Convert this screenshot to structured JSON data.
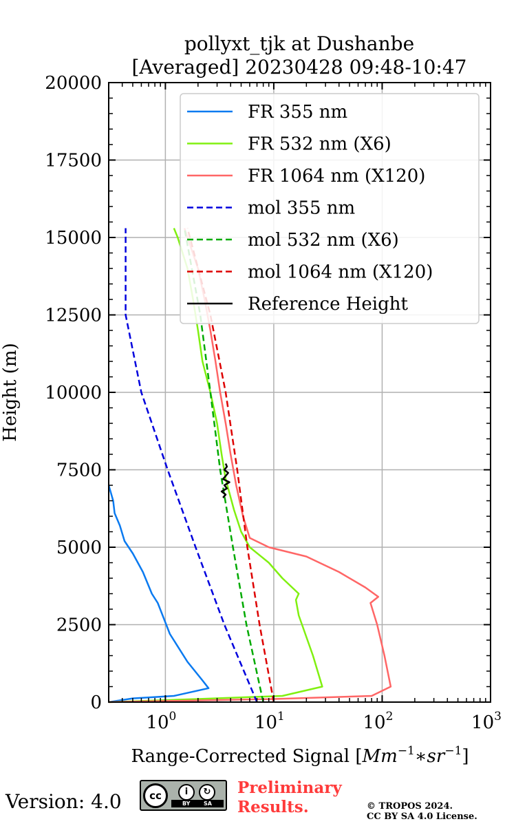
{
  "chart_data": {
    "type": "line",
    "title_lines": [
      "pollyxt_tjk at Dushanbe",
      "[Averaged] 20230428 09:48-10:47"
    ],
    "xlabel_text": "Range-Corrected Signal [",
    "xlabel_units": "Mm",
    "xlabel_exp1": "−1",
    "xlabel_star": "∗",
    "xlabel_units2": "sr",
    "xlabel_exp2": "−1",
    "xlabel_close": "]",
    "ylabel": "Height (m)",
    "x_scale": "log",
    "xlim": [
      0.3,
      1000
    ],
    "ylim": [
      0,
      20000
    ],
    "x_ticks": [
      {
        "value": 1,
        "mantissa": "10",
        "exp": "0"
      },
      {
        "value": 10,
        "mantissa": "10",
        "exp": "1"
      },
      {
        "value": 100,
        "mantissa": "10",
        "exp": "2"
      },
      {
        "value": 1000,
        "mantissa": "10",
        "exp": "3"
      }
    ],
    "y_ticks": [
      0,
      2500,
      5000,
      7500,
      10000,
      12500,
      15000,
      17500,
      20000
    ],
    "grid": true,
    "legend_position": "top-right",
    "series": [
      {
        "name": "FR 355 nm",
        "color": "#0a7af0",
        "style": "solid",
        "points": [
          [
            0.3,
            0
          ],
          [
            0.5,
            120
          ],
          [
            1.2,
            200
          ],
          [
            2.5,
            450
          ],
          [
            2.2,
            700
          ],
          [
            1.6,
            1300
          ],
          [
            1.1,
            2200
          ],
          [
            0.85,
            3200
          ],
          [
            0.75,
            3500
          ],
          [
            0.62,
            4200
          ],
          [
            0.5,
            4800
          ],
          [
            0.42,
            5200
          ],
          [
            0.38,
            5700
          ],
          [
            0.34,
            6100
          ],
          [
            0.33,
            6500
          ],
          [
            0.3,
            7000
          ]
        ]
      },
      {
        "name": "FR 532 nm (X6)",
        "color": "#80f010",
        "style": "solid",
        "points": [
          [
            0.3,
            0
          ],
          [
            2,
            100
          ],
          [
            12,
            200
          ],
          [
            28,
            500
          ],
          [
            23,
            1500
          ],
          [
            17,
            2800
          ],
          [
            16,
            3300
          ],
          [
            17,
            3500
          ],
          [
            12,
            4000
          ],
          [
            9,
            4500
          ],
          [
            6,
            5000
          ],
          [
            5,
            5500
          ],
          [
            4.3,
            6200
          ],
          [
            3.6,
            7200
          ],
          [
            3.3,
            8000
          ],
          [
            3,
            9000
          ],
          [
            2.6,
            10000
          ],
          [
            2.2,
            11000
          ],
          [
            2,
            12000
          ],
          [
            1.8,
            13000
          ],
          [
            1.6,
            14000
          ],
          [
            1.3,
            15000
          ],
          [
            1.2,
            15300
          ]
        ]
      },
      {
        "name": "FR 1064 nm (X120)",
        "color": "#ff6666",
        "style": "solid",
        "points": [
          [
            0.3,
            0
          ],
          [
            10,
            100
          ],
          [
            80,
            200
          ],
          [
            120,
            500
          ],
          [
            105,
            1500
          ],
          [
            90,
            2500
          ],
          [
            78,
            3200
          ],
          [
            92,
            3400
          ],
          [
            70,
            3700
          ],
          [
            40,
            4200
          ],
          [
            20,
            4700
          ],
          [
            9,
            5000
          ],
          [
            6,
            5300
          ],
          [
            5.2,
            6000
          ],
          [
            4.5,
            7000
          ],
          [
            4,
            8000
          ],
          [
            3.6,
            9000
          ],
          [
            3.2,
            10000
          ],
          [
            2.9,
            11000
          ],
          [
            2.6,
            12000
          ],
          [
            2.3,
            13000
          ],
          [
            2,
            14000
          ],
          [
            1.6,
            15000
          ],
          [
            1.5,
            15300
          ]
        ]
      },
      {
        "name": "mol 355 nm",
        "color": "#0000dd",
        "style": "dashed",
        "points": [
          [
            7,
            0
          ],
          [
            3.5,
            2500
          ],
          [
            1.9,
            5000
          ],
          [
            1.05,
            7500
          ],
          [
            0.6,
            10000
          ],
          [
            0.43,
            12500
          ],
          [
            0.43,
            15300
          ]
        ]
      },
      {
        "name": "mol 532 nm (X6)",
        "color": "#00aa00",
        "style": "dashed",
        "points": [
          [
            8,
            0
          ],
          [
            5.6,
            2500
          ],
          [
            4.2,
            5000
          ],
          [
            3.2,
            7500
          ],
          [
            2.6,
            10000
          ],
          [
            2.1,
            12500
          ],
          [
            1.5,
            15300
          ]
        ]
      },
      {
        "name": "mol 1064 nm (X120)",
        "color": "#dd0000",
        "style": "dashed",
        "points": [
          [
            10,
            0
          ],
          [
            7.4,
            2500
          ],
          [
            5.7,
            5000
          ],
          [
            4.6,
            7500
          ],
          [
            3.6,
            10000
          ],
          [
            2.6,
            12500
          ],
          [
            1.6,
            15300
          ]
        ]
      },
      {
        "name": "Reference Height",
        "color": "#000000",
        "style": "solid",
        "points": [
          [
            3.4,
            6600
          ],
          [
            3.6,
            6700
          ],
          [
            3.3,
            6800
          ],
          [
            3.7,
            6900
          ],
          [
            3.5,
            7000
          ],
          [
            3.9,
            7100
          ],
          [
            3.4,
            7200
          ],
          [
            3.6,
            7300
          ],
          [
            3.8,
            7400
          ],
          [
            3.5,
            7500
          ],
          [
            3.7,
            7600
          ],
          [
            3.6,
            7700
          ]
        ]
      }
    ]
  },
  "footer": {
    "version": "Version: 4.0",
    "license_badge": {
      "cc": "cc",
      "by": "BY",
      "sa": "SA"
    },
    "preliminary_line1": "Preliminary",
    "preliminary_line2": "Results.",
    "copyright_line1": "© TROPOS 2024.",
    "copyright_line2": "CC BY SA 4.0 License."
  }
}
